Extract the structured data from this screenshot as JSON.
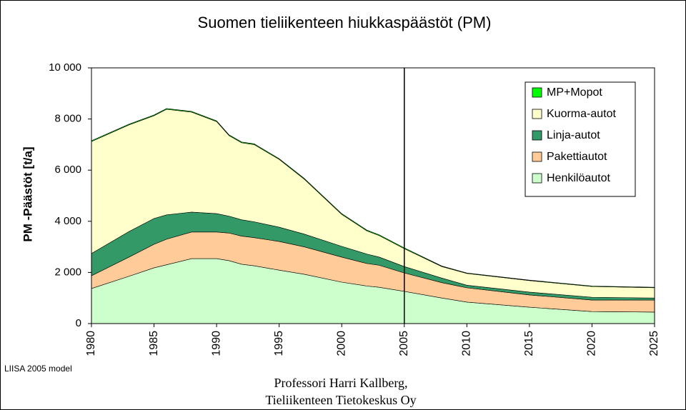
{
  "chart_data": {
    "type": "area",
    "title": "Suomen tieliikenteen hiukkaspäästöt (PM)",
    "y_label": "PM -Päästöt [t/a]",
    "note": "LIISA 2005 model",
    "credit": [
      "Professori Harri Kallberg,",
      "Tieliikenteen Tietokeskus Oy"
    ],
    "stacked": true,
    "x": [
      1980,
      1983,
      1985,
      1986,
      1988,
      1990,
      1991,
      1992,
      1993,
      1995,
      1997,
      2000,
      2002,
      2003,
      2005,
      2008,
      2010,
      2015,
      2020,
      2025
    ],
    "series": [
      {
        "name": "Henkilöautot",
        "color": "#ccffcc",
        "values": [
          1370,
          1850,
          2180,
          2300,
          2540,
          2540,
          2460,
          2320,
          2260,
          2090,
          1930,
          1620,
          1470,
          1420,
          1260,
          1000,
          840,
          640,
          470,
          450
        ]
      },
      {
        "name": "Pakettiautot",
        "color": "#ffcc99",
        "values": [
          500,
          750,
          920,
          1000,
          1040,
          1040,
          1080,
          1100,
          1100,
          1120,
          1070,
          980,
          880,
          860,
          720,
          600,
          560,
          480,
          450,
          470
        ]
      },
      {
        "name": "Linja-autot",
        "color": "#339966",
        "values": [
          870,
          1000,
          1010,
          950,
          780,
          720,
          660,
          640,
          620,
          560,
          500,
          420,
          370,
          320,
          250,
          180,
          100,
          110,
          110,
          80
        ]
      },
      {
        "name": "Kuorma-autot",
        "color": "#ffffcc",
        "values": [
          4380,
          4170,
          4020,
          4130,
          3910,
          3600,
          3150,
          3010,
          3020,
          2650,
          2150,
          1250,
          910,
          840,
          700,
          450,
          460,
          450,
          420,
          400
        ]
      },
      {
        "name": "MP+Mopot",
        "color": "#00ff00",
        "values": [
          30,
          30,
          30,
          30,
          30,
          30,
          30,
          30,
          30,
          30,
          30,
          30,
          30,
          30,
          30,
          20,
          20,
          20,
          20,
          20
        ]
      }
    ],
    "xlim": [
      1980,
      2025
    ],
    "xticks": [
      1980,
      1985,
      1990,
      1995,
      2000,
      2005,
      2010,
      2015,
      2020,
      2025
    ],
    "ylim": [
      0,
      10000
    ],
    "yticks": [
      0,
      {
        "value": 2000,
        "label": "2 000"
      },
      {
        "value": 4000,
        "label": "4 000"
      },
      {
        "value": 6000,
        "label": "6 000"
      },
      {
        "value": 8000,
        "label": "8 000"
      },
      {
        "value": 10000,
        "label": "10 000"
      }
    ],
    "vline": 2005,
    "legend": "upper right"
  }
}
